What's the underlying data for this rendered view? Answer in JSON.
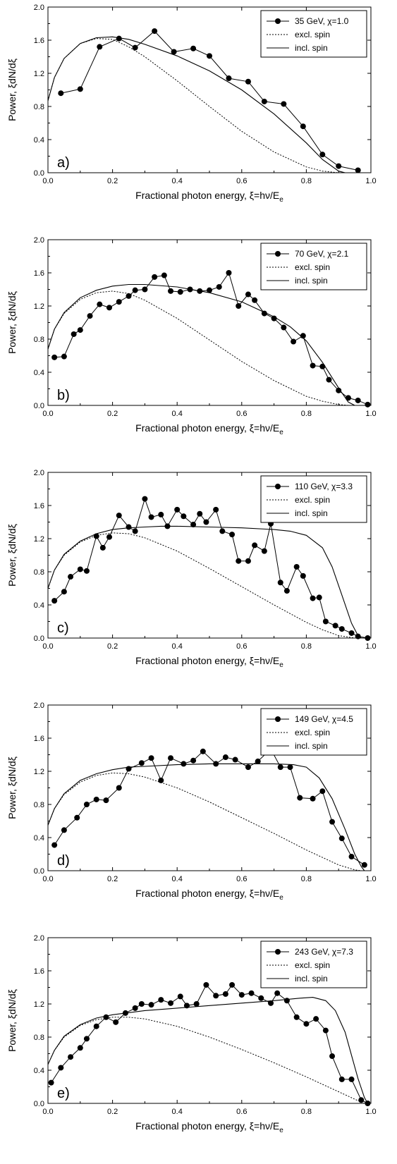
{
  "chart_data": [
    {
      "type": "line",
      "panel_label": "a)",
      "xlabel": "Fractional photon energy, ξ=hν/E",
      "xlabel_sub": "e",
      "ylabel": "Power, ξdN/dξ",
      "xlim": [
        0.0,
        1.0
      ],
      "ylim": [
        0.0,
        2.0
      ],
      "xticks": [
        "0.0",
        "0.2",
        "0.4",
        "0.6",
        "0.8",
        "1.0"
      ],
      "yticks": [
        "0.0",
        "0.4",
        "0.8",
        "1.2",
        "1.6",
        "2.0"
      ],
      "legend_position": "top-right",
      "series": [
        {
          "name": "35 GeV, χ=1.0",
          "style": "markers",
          "x": [
            0.04,
            0.1,
            0.16,
            0.22,
            0.27,
            0.33,
            0.39,
            0.45,
            0.5,
            0.56,
            0.62,
            0.67,
            0.73,
            0.79,
            0.85,
            0.9,
            0.96
          ],
          "y": [
            0.96,
            1.01,
            1.52,
            1.62,
            1.51,
            1.71,
            1.46,
            1.5,
            1.41,
            1.14,
            1.1,
            0.86,
            0.83,
            0.56,
            0.22,
            0.08,
            0.03
          ]
        },
        {
          "name": "excl. spin",
          "style": "dotted",
          "x": [
            0.0,
            0.02,
            0.05,
            0.1,
            0.15,
            0.2,
            0.25,
            0.3,
            0.4,
            0.5,
            0.6,
            0.7,
            0.8,
            0.85,
            0.9
          ],
          "y": [
            0.87,
            1.15,
            1.38,
            1.56,
            1.62,
            1.61,
            1.52,
            1.4,
            1.11,
            0.8,
            0.5,
            0.25,
            0.07,
            0.02,
            0.0
          ]
        },
        {
          "name": "incl. spin",
          "style": "solid",
          "x": [
            0.0,
            0.02,
            0.05,
            0.1,
            0.15,
            0.2,
            0.25,
            0.3,
            0.4,
            0.5,
            0.6,
            0.7,
            0.8,
            0.85,
            0.9,
            0.92
          ],
          "y": [
            0.87,
            1.15,
            1.38,
            1.56,
            1.63,
            1.64,
            1.61,
            1.55,
            1.41,
            1.23,
            1.0,
            0.71,
            0.36,
            0.16,
            0.02,
            0.0
          ]
        }
      ]
    },
    {
      "type": "line",
      "panel_label": "b)",
      "xlabel": "Fractional photon energy, ξ=hν/E",
      "xlabel_sub": "e",
      "ylabel": "Power, ξdN/dξ",
      "xlim": [
        0.0,
        1.0
      ],
      "ylim": [
        0.0,
        2.0
      ],
      "xticks": [
        "0.0",
        "0.2",
        "0.4",
        "0.6",
        "0.8",
        "1.0"
      ],
      "yticks": [
        "0.0",
        "0.4",
        "0.8",
        "1.2",
        "1.6",
        "2.0"
      ],
      "legend_position": "top-right",
      "series": [
        {
          "name": "70 GeV, χ=2.1",
          "style": "markers",
          "x": [
            0.02,
            0.05,
            0.08,
            0.1,
            0.13,
            0.16,
            0.19,
            0.22,
            0.25,
            0.27,
            0.3,
            0.33,
            0.36,
            0.38,
            0.41,
            0.44,
            0.47,
            0.5,
            0.53,
            0.56,
            0.59,
            0.62,
            0.64,
            0.67,
            0.7,
            0.73,
            0.76,
            0.79,
            0.82,
            0.85,
            0.87,
            0.9,
            0.93,
            0.96,
            0.99
          ],
          "y": [
            0.58,
            0.59,
            0.86,
            0.91,
            1.08,
            1.22,
            1.18,
            1.25,
            1.32,
            1.39,
            1.4,
            1.55,
            1.57,
            1.38,
            1.37,
            1.4,
            1.38,
            1.39,
            1.43,
            1.6,
            1.2,
            1.34,
            1.27,
            1.11,
            1.05,
            0.94,
            0.77,
            0.84,
            0.48,
            0.47,
            0.31,
            0.18,
            0.09,
            0.06,
            0.01
          ]
        },
        {
          "name": "excl. spin",
          "style": "dotted",
          "x": [
            0.0,
            0.02,
            0.05,
            0.1,
            0.15,
            0.2,
            0.25,
            0.3,
            0.4,
            0.5,
            0.6,
            0.7,
            0.8,
            0.85,
            0.9,
            0.93
          ],
          "y": [
            0.68,
            0.92,
            1.11,
            1.28,
            1.36,
            1.38,
            1.35,
            1.27,
            1.05,
            0.79,
            0.53,
            0.3,
            0.11,
            0.05,
            0.01,
            0.0
          ]
        },
        {
          "name": "incl. spin",
          "style": "solid",
          "x": [
            0.0,
            0.02,
            0.05,
            0.1,
            0.15,
            0.2,
            0.25,
            0.3,
            0.4,
            0.5,
            0.6,
            0.7,
            0.75,
            0.8,
            0.85,
            0.9,
            0.93,
            0.95
          ],
          "y": [
            0.68,
            0.92,
            1.12,
            1.3,
            1.39,
            1.44,
            1.46,
            1.46,
            1.43,
            1.36,
            1.25,
            1.07,
            0.95,
            0.78,
            0.52,
            0.21,
            0.04,
            0.0
          ]
        }
      ]
    },
    {
      "type": "line",
      "panel_label": "c)",
      "xlabel": "Fractional photon energy, ξ=hν/E",
      "xlabel_sub": "e",
      "ylabel": "Power, ξdN/dξ",
      "xlim": [
        0.0,
        1.0
      ],
      "ylim": [
        0.0,
        2.0
      ],
      "xticks": [
        "0.0",
        "0.2",
        "0.4",
        "0.6",
        "0.8",
        "1.0"
      ],
      "yticks": [
        "0.0",
        "0.4",
        "0.8",
        "1.2",
        "1.6",
        "2.0"
      ],
      "legend_position": "top-right",
      "series": [
        {
          "name": "110 GeV, χ=3.3",
          "style": "markers",
          "x": [
            0.02,
            0.05,
            0.07,
            0.1,
            0.12,
            0.15,
            0.17,
            0.19,
            0.22,
            0.25,
            0.27,
            0.3,
            0.32,
            0.35,
            0.37,
            0.4,
            0.42,
            0.45,
            0.47,
            0.49,
            0.52,
            0.54,
            0.57,
            0.59,
            0.62,
            0.64,
            0.67,
            0.69,
            0.72,
            0.74,
            0.77,
            0.79,
            0.82,
            0.84,
            0.86,
            0.89,
            0.91,
            0.94,
            0.96,
            0.99
          ],
          "y": [
            0.45,
            0.56,
            0.74,
            0.83,
            0.81,
            1.23,
            1.09,
            1.22,
            1.48,
            1.34,
            1.29,
            1.68,
            1.46,
            1.49,
            1.35,
            1.55,
            1.47,
            1.37,
            1.5,
            1.4,
            1.55,
            1.29,
            1.25,
            0.93,
            0.93,
            1.12,
            1.05,
            1.38,
            0.67,
            0.57,
            0.86,
            0.75,
            0.48,
            0.49,
            0.2,
            0.15,
            0.11,
            0.06,
            0.02,
            0.0
          ]
        },
        {
          "name": "excl. spin",
          "style": "dotted",
          "x": [
            0.0,
            0.02,
            0.05,
            0.1,
            0.15,
            0.2,
            0.25,
            0.3,
            0.4,
            0.5,
            0.6,
            0.7,
            0.8,
            0.85,
            0.9,
            0.95
          ],
          "y": [
            0.6,
            0.82,
            1.0,
            1.16,
            1.24,
            1.27,
            1.26,
            1.21,
            1.05,
            0.84,
            0.62,
            0.4,
            0.19,
            0.1,
            0.03,
            0.0
          ]
        },
        {
          "name": "incl. spin",
          "style": "solid",
          "x": [
            0.0,
            0.02,
            0.05,
            0.1,
            0.15,
            0.2,
            0.25,
            0.3,
            0.35,
            0.4,
            0.5,
            0.6,
            0.7,
            0.75,
            0.8,
            0.85,
            0.88,
            0.91,
            0.94,
            0.96,
            0.97
          ],
          "y": [
            0.6,
            0.82,
            1.01,
            1.17,
            1.26,
            1.31,
            1.33,
            1.34,
            1.35,
            1.35,
            1.34,
            1.33,
            1.31,
            1.29,
            1.24,
            1.09,
            0.86,
            0.52,
            0.18,
            0.03,
            0.0
          ]
        }
      ]
    },
    {
      "type": "line",
      "panel_label": "d)",
      "xlabel": "Fractional photon energy, ξ=hν/E",
      "xlabel_sub": "e",
      "ylabel": "Power, ξdN/dξ",
      "xlim": [
        0.0,
        1.0
      ],
      "ylim": [
        0.0,
        2.0
      ],
      "xticks": [
        "0.0",
        "0.2",
        "0.4",
        "0.6",
        "0.8",
        "1.0"
      ],
      "yticks": [
        "0.0",
        "0.4",
        "0.8",
        "1.2",
        "1.6",
        "2.0"
      ],
      "legend_position": "top-right",
      "series": [
        {
          "name": "149 GeV, χ=4.5",
          "style": "markers",
          "x": [
            0.02,
            0.05,
            0.09,
            0.12,
            0.15,
            0.18,
            0.22,
            0.25,
            0.29,
            0.32,
            0.35,
            0.38,
            0.42,
            0.45,
            0.48,
            0.52,
            0.55,
            0.58,
            0.62,
            0.65,
            0.69,
            0.72,
            0.75,
            0.78,
            0.82,
            0.85,
            0.88,
            0.91,
            0.94,
            0.98
          ],
          "y": [
            0.31,
            0.49,
            0.64,
            0.8,
            0.86,
            0.85,
            1.0,
            1.23,
            1.3,
            1.36,
            1.09,
            1.36,
            1.29,
            1.33,
            1.44,
            1.29,
            1.37,
            1.34,
            1.25,
            1.32,
            1.47,
            1.25,
            1.25,
            0.88,
            0.87,
            0.96,
            0.59,
            0.39,
            0.17,
            0.07
          ]
        },
        {
          "name": "excl. spin",
          "style": "dotted",
          "x": [
            0.0,
            0.02,
            0.05,
            0.1,
            0.15,
            0.2,
            0.25,
            0.3,
            0.4,
            0.5,
            0.6,
            0.7,
            0.8,
            0.85,
            0.9,
            0.95,
            0.97
          ],
          "y": [
            0.55,
            0.75,
            0.92,
            1.07,
            1.15,
            1.18,
            1.17,
            1.13,
            1.0,
            0.83,
            0.64,
            0.45,
            0.25,
            0.16,
            0.07,
            0.01,
            0.0
          ]
        },
        {
          "name": "incl. spin",
          "style": "solid",
          "x": [
            0.0,
            0.02,
            0.05,
            0.1,
            0.15,
            0.2,
            0.25,
            0.3,
            0.4,
            0.5,
            0.6,
            0.7,
            0.76,
            0.8,
            0.84,
            0.88,
            0.92,
            0.95,
            0.97,
            0.98
          ],
          "y": [
            0.55,
            0.75,
            0.93,
            1.09,
            1.17,
            1.22,
            1.25,
            1.26,
            1.28,
            1.29,
            1.29,
            1.29,
            1.28,
            1.25,
            1.12,
            0.87,
            0.5,
            0.2,
            0.05,
            0.0
          ]
        }
      ]
    },
    {
      "type": "line",
      "panel_label": "e)",
      "xlabel": "Fractional photon energy, ξ=hν/E",
      "xlabel_sub": "e",
      "ylabel": "Power, ξdN/dξ",
      "xlim": [
        0.0,
        1.0
      ],
      "ylim": [
        0.0,
        2.0
      ],
      "xticks": [
        "0.0",
        "0.2",
        "0.4",
        "0.6",
        "0.8",
        "1.0"
      ],
      "yticks": [
        "0.0",
        "0.4",
        "0.8",
        "1.2",
        "1.6",
        "2.0"
      ],
      "legend_position": "top-right",
      "series": [
        {
          "name": "243 GeV, χ=7.3",
          "style": "markers",
          "x": [
            0.01,
            0.04,
            0.07,
            0.1,
            0.12,
            0.15,
            0.18,
            0.21,
            0.24,
            0.27,
            0.29,
            0.32,
            0.35,
            0.38,
            0.41,
            0.43,
            0.46,
            0.49,
            0.52,
            0.55,
            0.57,
            0.6,
            0.63,
            0.66,
            0.69,
            0.71,
            0.74,
            0.77,
            0.8,
            0.83,
            0.86,
            0.88,
            0.91,
            0.94,
            0.97,
            0.99
          ],
          "y": [
            0.25,
            0.43,
            0.56,
            0.67,
            0.78,
            0.93,
            1.04,
            0.98,
            1.09,
            1.15,
            1.2,
            1.19,
            1.25,
            1.21,
            1.29,
            1.18,
            1.2,
            1.43,
            1.3,
            1.32,
            1.43,
            1.31,
            1.33,
            1.27,
            1.21,
            1.33,
            1.24,
            1.04,
            0.96,
            1.02,
            0.88,
            0.57,
            0.29,
            0.29,
            0.04,
            0.0
          ]
        },
        {
          "name": "excl. spin",
          "style": "dotted",
          "x": [
            0.0,
            0.02,
            0.05,
            0.1,
            0.15,
            0.2,
            0.25,
            0.3,
            0.4,
            0.5,
            0.6,
            0.7,
            0.8,
            0.85,
            0.9,
            0.95,
            0.98
          ],
          "y": [
            0.47,
            0.64,
            0.8,
            0.94,
            1.01,
            1.04,
            1.04,
            1.02,
            0.93,
            0.8,
            0.65,
            0.49,
            0.32,
            0.23,
            0.14,
            0.05,
            0.0
          ]
        },
        {
          "name": "incl. spin",
          "style": "solid",
          "x": [
            0.0,
            0.02,
            0.05,
            0.1,
            0.15,
            0.2,
            0.3,
            0.4,
            0.5,
            0.6,
            0.7,
            0.78,
            0.82,
            0.86,
            0.89,
            0.92,
            0.94,
            0.96,
            0.98,
            0.99
          ],
          "y": [
            0.47,
            0.64,
            0.81,
            0.95,
            1.03,
            1.07,
            1.12,
            1.15,
            1.18,
            1.21,
            1.24,
            1.27,
            1.28,
            1.24,
            1.12,
            0.86,
            0.58,
            0.3,
            0.07,
            0.0
          ]
        }
      ]
    }
  ]
}
